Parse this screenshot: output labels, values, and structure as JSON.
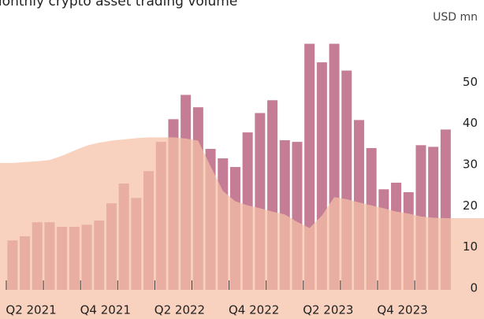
{
  "chart_data": {
    "type": "bar",
    "title": "Monthly crypto asset trading volume",
    "y_axis_label": "USD mn",
    "categories": [
      null,
      "Q2 2021",
      null,
      null,
      null,
      null,
      null,
      "Q4 2021",
      null,
      null,
      null,
      null,
      null,
      "Q2 2022",
      null,
      null,
      null,
      null,
      null,
      "Q4 2022",
      null,
      null,
      null,
      null,
      null,
      "Q2 2023",
      null,
      null,
      null,
      null,
      null,
      "Q4 2023",
      null,
      null,
      null,
      null
    ],
    "series": [
      {
        "color": "#c47d95",
        "values": [
          12,
          13,
          16.4,
          16.4,
          15.3,
          15.3,
          15.8,
          16.8,
          21,
          25.8,
          22.3,
          28.8,
          35.9,
          41.4,
          47.3,
          44.3,
          34.2,
          31.9,
          29.8,
          38.2,
          42.9,
          46,
          36.3,
          35.9,
          59.7,
          55.2,
          59.7,
          53.2,
          41.2,
          34.4,
          24.4,
          26,
          23.7,
          35.1,
          34.7,
          38.9
        ]
      },
      {
        "type": "area",
        "color": "#f5c1a6",
        "values": [
          30.8,
          31,
          31.2,
          31.5,
          32.5,
          33.8,
          35,
          35.7,
          36.2,
          36.5,
          36.8,
          37,
          37,
          37,
          36.7,
          36.2,
          30,
          24,
          21.5,
          20.5,
          19.8,
          19,
          18.3,
          16.5,
          15,
          18,
          22.5,
          22,
          21.2,
          20.5,
          19.8,
          19,
          18.5,
          17.8,
          17.5,
          17.4
        ]
      }
    ],
    "ylim": [
      0,
      60
    ],
    "yticks": [
      0,
      10,
      20,
      30,
      40,
      50
    ],
    "y_axis_side": "right"
  }
}
